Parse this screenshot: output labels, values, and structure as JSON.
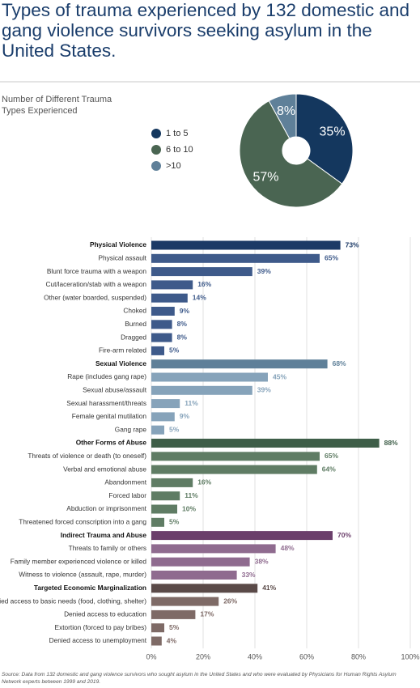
{
  "title": "Types of trauma experienced by 132 domestic and gang violence survivors seeking asylum in the United States.",
  "source": "Source: Data from 132 domestic and gang violence survivors who sought asylum in the United States and who were evaluated by Physicians for Human Rights Asylum Network experts between 1999 and 2019.",
  "chart_data": [
    {
      "type": "pie",
      "title": "Number of Different Trauma Types Experienced",
      "categories": [
        "1 to 5",
        "6 to 10",
        ">10"
      ],
      "values": [
        35,
        57,
        8
      ],
      "value_labels": [
        "35%",
        "57%",
        "8%"
      ],
      "colors": [
        "#14375e",
        "#4a6552",
        "#5f8099"
      ],
      "donut": true
    },
    {
      "type": "hbar",
      "categories": [
        "Physical Violence",
        "Physical assault",
        "Blunt force trauma with a weapon",
        "Cut/laceration/stab with a weapon",
        "Other (water boarded, suspended)",
        "Choked",
        "Burned",
        "Dragged",
        "Fire-arm related",
        "Sexual Violence",
        "Rape (includes gang rape)",
        "Sexual abuse/assault",
        "Sexual harassment/threats",
        "Female genital mutilation",
        "Gang rape",
        "Other Forms of Abuse",
        "Threats of violence or death (to oneself)",
        "Verbal and emotional abuse",
        "Abandonment",
        "Forced labor",
        "Abduction or imprisonment",
        "Threatened forced conscription into a gang",
        "Indirect Trauma and Abuse",
        "Threats to family or others",
        "Family member experienced violence or killed",
        "Witness to violence (assault, rape, murder)",
        "Targeted Economic Marginalization",
        "Denied access to basic needs (food, clothing, shelter)",
        "Denied access to education",
        "Extortion (forced to pay bribes)",
        "Denied access to unemployment"
      ],
      "values": [
        73,
        65,
        39,
        16,
        14,
        9,
        8,
        8,
        5,
        68,
        45,
        39,
        11,
        9,
        5,
        88,
        65,
        64,
        16,
        11,
        10,
        5,
        70,
        48,
        38,
        33,
        41,
        26,
        17,
        5,
        4
      ],
      "value_labels": [
        "73%",
        "65%",
        "39%",
        "16%",
        "14%",
        "9%",
        "8%",
        "8%",
        "5%",
        "68%",
        "45%",
        "39%",
        "11%",
        "9%",
        "5%",
        "88%",
        "65%",
        "64%",
        "16%",
        "11%",
        "10%",
        "5%",
        "70%",
        "48%",
        "38%",
        "33%",
        "41%",
        "26%",
        "17%",
        "5%",
        "4%"
      ],
      "colors": [
        "#1c3a66",
        "#3e5a8a",
        "#3e5a8a",
        "#3e5a8a",
        "#3e5a8a",
        "#3e5a8a",
        "#3e5a8a",
        "#3e5a8a",
        "#3e5a8a",
        "#5f8099",
        "#86a3ba",
        "#86a3ba",
        "#86a3ba",
        "#86a3ba",
        "#86a3ba",
        "#3e5e48",
        "#5f7c64",
        "#5f7c64",
        "#5f7c64",
        "#5f7c64",
        "#5f7c64",
        "#5f7c64",
        "#6b3f6b",
        "#8f6b8f",
        "#8f6b8f",
        "#8f6b8f",
        "#5a4a48",
        "#7e6a66",
        "#7e6a66",
        "#7e6a66",
        "#7e6a66"
      ],
      "headers": [
        0,
        9,
        15,
        22,
        26
      ],
      "xlim": [
        0,
        100
      ],
      "xticks": [
        {
          "value": 0,
          "label": "0%"
        },
        {
          "value": 20,
          "label": "20%"
        },
        {
          "value": 40,
          "label": "40%"
        },
        {
          "value": 60,
          "label": "60%"
        },
        {
          "value": 80,
          "label": "80%"
        },
        {
          "value": 100,
          "label": "100%"
        }
      ],
      "grid": true
    }
  ]
}
